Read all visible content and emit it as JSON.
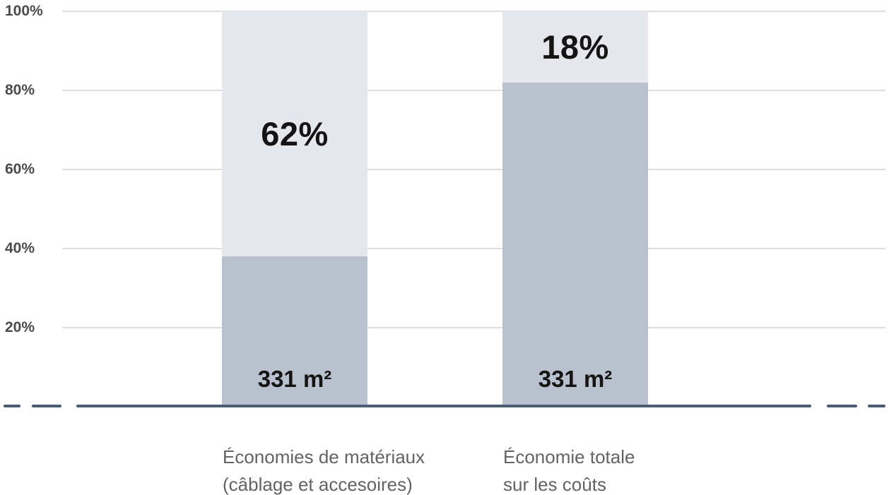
{
  "chart_data": {
    "type": "bar",
    "subtype": "stacked-percentage-columns",
    "title": "",
    "xlabel": "",
    "ylabel": "",
    "ylim": [
      0,
      100
    ],
    "grid": true,
    "legend_position": "none",
    "baseline_style": "solid-with-dashed-ends",
    "categories": [
      {
        "line1": "Économies de matériaux",
        "line2": "(câblage et accesoires)"
      },
      {
        "line1": "Économie totale",
        "line2": "sur les coûts"
      }
    ],
    "series": [
      {
        "name": "base-area",
        "color": "#b9c0ce",
        "values": [
          38,
          82
        ],
        "labels": [
          "331 m²",
          "331 m²"
        ]
      },
      {
        "name": "savings-percent",
        "color": "#e5e7ed",
        "values": [
          62,
          18
        ],
        "labels": [
          "62%",
          "18%"
        ]
      }
    ],
    "y_axis": {
      "min": 0,
      "max": 100,
      "ticks": [
        {
          "label": "100%",
          "value": 100
        },
        {
          "label": "80%",
          "value": 80
        },
        {
          "label": "60%",
          "value": 60
        },
        {
          "label": "40%",
          "value": 40
        },
        {
          "label": "20%",
          "value": 20
        }
      ]
    }
  },
  "colors": {
    "segment_light": "#e5e7ed",
    "segment_dark": "#b9c0ce",
    "gridline": "#dbdfe5",
    "baseline": "#4b5b74",
    "axis_text": "#4b4b4b",
    "category_text": "#636363",
    "value_text": "#141414",
    "background": "#ffffff"
  }
}
